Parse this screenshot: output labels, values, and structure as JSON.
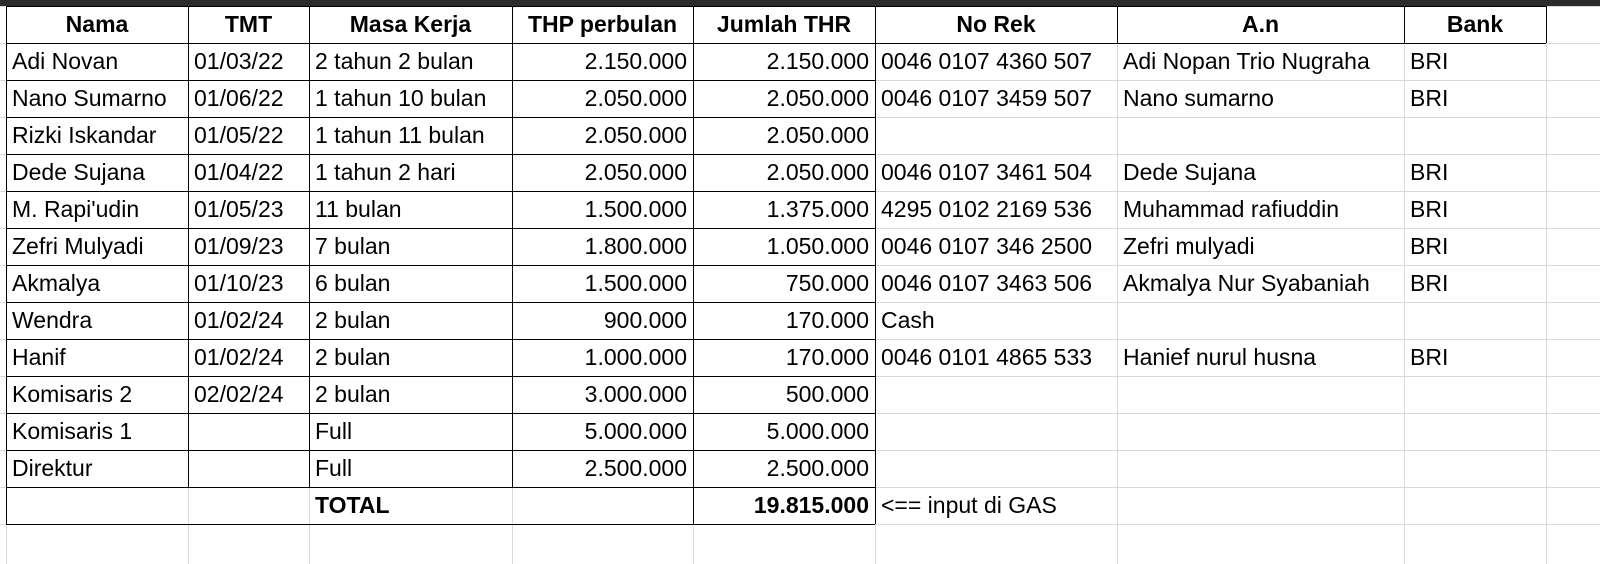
{
  "headers": [
    "Nama",
    "TMT",
    "Masa Kerja",
    "THP perbulan",
    "Jumlah THR",
    "No Rek",
    "A.n",
    "Bank"
  ],
  "rows": [
    {
      "nama": "Adi Novan",
      "tmt": "01/03/22",
      "masa": "2 tahun 2 bulan",
      "thp": "2.150.000",
      "thr": "2.150.000",
      "norek": "0046 0107 4360 507",
      "an": "Adi Nopan Trio Nugraha",
      "bank": "BRI"
    },
    {
      "nama": "Nano Sumarno",
      "tmt": "01/06/22",
      "masa": "1 tahun 10 bulan",
      "thp": "2.050.000",
      "thr": "2.050.000",
      "norek": "0046 0107 3459 507",
      "an": "Nano sumarno",
      "bank": "BRI"
    },
    {
      "nama": "Rizki Iskandar",
      "tmt": "01/05/22",
      "masa": "1 tahun 11 bulan",
      "thp": "2.050.000",
      "thr": "2.050.000",
      "norek": "",
      "an": "",
      "bank": ""
    },
    {
      "nama": "Dede Sujana",
      "tmt": "01/04/22",
      "masa": "1 tahun 2 hari",
      "thp": "2.050.000",
      "thr": "2.050.000",
      "norek": "0046 0107 3461 504",
      "an": "Dede Sujana",
      "bank": "BRI"
    },
    {
      "nama": "M. Rapi'udin",
      "tmt": "01/05/23",
      "masa": "11 bulan",
      "thp": "1.500.000",
      "thr": "1.375.000",
      "norek": " 4295 0102 2169 536",
      "an": "Muhammad rafiuddin",
      "bank": "BRI"
    },
    {
      "nama": "Zefri Mulyadi",
      "tmt": "01/09/23",
      "masa": "7 bulan",
      "thp": "1.800.000",
      "thr": "1.050.000",
      "norek": "0046 0107 346 2500",
      "an": "Zefri mulyadi",
      "bank": "BRI"
    },
    {
      "nama": "Akmalya",
      "tmt": "01/10/23",
      "masa": "6 bulan",
      "thp": "1.500.000",
      "thr": "750.000",
      "norek": "0046 0107 3463 506",
      "an": "Akmalya Nur Syabaniah",
      "bank": "BRI"
    },
    {
      "nama": "Wendra",
      "tmt": "01/02/24",
      "masa": "2 bulan",
      "thp": "900.000",
      "thr": "170.000",
      "norek": "Cash",
      "an": "",
      "bank": ""
    },
    {
      "nama": "Hanif",
      "tmt": "01/02/24",
      "masa": "2 bulan",
      "thp": "1.000.000",
      "thr": "170.000",
      "norek": "0046 0101 4865 533",
      "an": "Hanief nurul husna",
      "bank": "BRI"
    },
    {
      "nama": "Komisaris 2",
      "tmt": "02/02/24",
      "masa": "2 bulan",
      "thp": "3.000.000",
      "thr": "500.000",
      "norek": "",
      "an": "",
      "bank": ""
    },
    {
      "nama": "Komisaris 1",
      "tmt": "",
      "masa": "Full",
      "thp": "5.000.000",
      "thr": "5.000.000",
      "norek": "",
      "an": "",
      "bank": ""
    },
    {
      "nama": "Direktur",
      "tmt": "",
      "masa": "Full",
      "thp": "2.500.000",
      "thr": "2.500.000",
      "norek": "",
      "an": "",
      "bank": ""
    }
  ],
  "total": {
    "label": "TOTAL",
    "value": "19.815.000",
    "note": "<== input di GAS"
  }
}
